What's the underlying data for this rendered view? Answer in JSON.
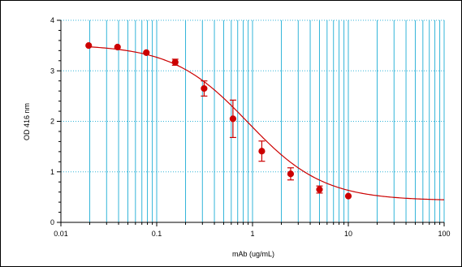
{
  "chart_data": {
    "type": "scatter",
    "xscale": "log",
    "xlim": [
      0.01,
      100
    ],
    "ylim": [
      0,
      4
    ],
    "grid": true,
    "title": "",
    "xlabel": "mAb (ug/mL)",
    "ylabel": "OD 416 nm",
    "x_tick_labels": [
      "0.01",
      "0.1",
      "1",
      "10",
      "100"
    ],
    "y_tick_labels": [
      "0",
      "1",
      "2",
      "3",
      "4"
    ],
    "colors": {
      "series": "#cc0000",
      "grid": "#33b5d9",
      "axis": "#000000"
    },
    "series": [
      {
        "points": [
          {
            "x": 0.0195,
            "y": 3.5,
            "err": 0.03
          },
          {
            "x": 0.039,
            "y": 3.47,
            "err": 0.03
          },
          {
            "x": 0.078,
            "y": 3.36,
            "err": 0.03
          },
          {
            "x": 0.156,
            "y": 3.17,
            "err": 0.06
          },
          {
            "x": 0.3125,
            "y": 2.65,
            "err": 0.15
          },
          {
            "x": 0.625,
            "y": 2.05,
            "err": 0.37
          },
          {
            "x": 1.25,
            "y": 1.41,
            "err": 0.2
          },
          {
            "x": 2.5,
            "y": 0.96,
            "err": 0.12
          },
          {
            "x": 5.0,
            "y": 0.65,
            "err": 0.07
          },
          {
            "x": 10.0,
            "y": 0.52,
            "err": 0.02
          }
        ],
        "fit": {
          "model": "4PL",
          "top": 3.52,
          "bottom": 0.43,
          "ec50": 0.9,
          "hill": 1.1
        }
      }
    ]
  }
}
